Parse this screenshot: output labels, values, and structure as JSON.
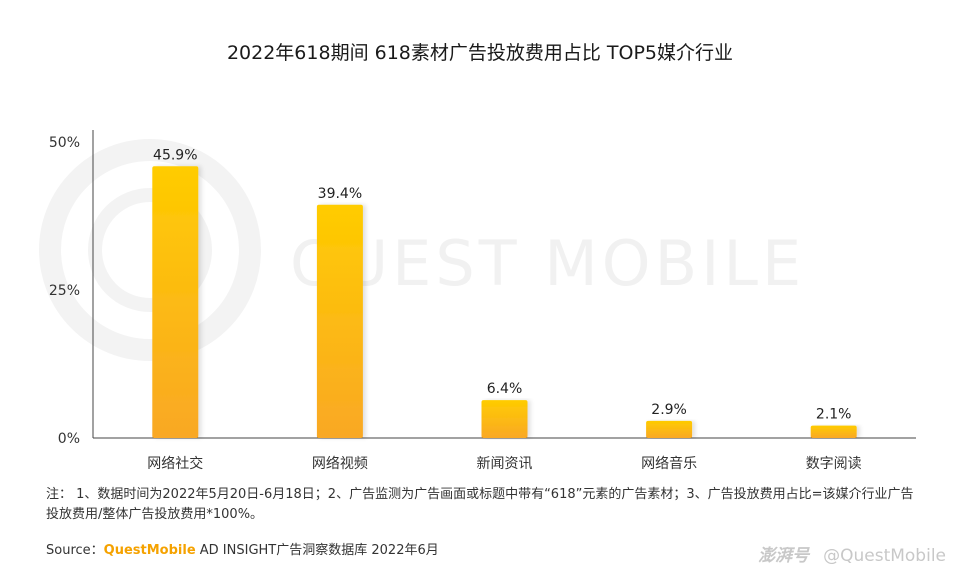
{
  "title": "2022年618期间 618素材广告投放费用占比 TOP5媒介行业",
  "chart_data": {
    "type": "bar",
    "categories": [
      "网络社交",
      "网络视频",
      "新闻资讯",
      "网络音乐",
      "数字阅读"
    ],
    "values": [
      45.9,
      39.4,
      6.4,
      2.9,
      2.1
    ],
    "data_labels": [
      "45.9%",
      "39.4%",
      "6.4%",
      "2.9%",
      "2.1%"
    ],
    "y_ticks": [
      {
        "value": 0,
        "label": "0%"
      },
      {
        "value": 25,
        "label": "25%"
      },
      {
        "value": 50,
        "label": "50%"
      }
    ],
    "ylim": [
      0,
      50
    ],
    "title": "2022年618期间 618素材广告投放费用占比 TOP5媒介行业",
    "xlabel": "",
    "ylabel": "",
    "grid": false,
    "bar_color_top": "#ffcc00",
    "bar_color_bottom": "#f9a825"
  },
  "watermark": {
    "text": "QUEST MOBILE"
  },
  "note": "注： 1、数据时间为2022年5月20日-6月18日；2、广告监测为广告画面或标题中带有“618”元素的广告素材；3、广告投放费用占比=该媒介行业广告投放费用/整体广告投放费用*100%。",
  "source": {
    "prefix": "Source：",
    "brand": "QuestMobile",
    "suffix": " AD INSIGHT广告洞察数据库 2022年6月"
  },
  "corner": {
    "pengpai": "澎湃号",
    "handle": "@QuestMobile"
  }
}
